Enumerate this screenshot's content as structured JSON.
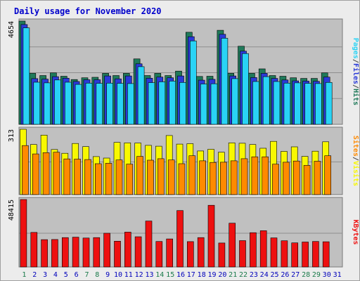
{
  "title": "Daily usage for November 2020",
  "colors": {
    "hits": "#1f7a5a",
    "files": "#2a3ad8",
    "pages": "#29d3f5",
    "visits": "#f8f800",
    "sites": "#ff8a00",
    "kbytes": "#ee1010",
    "panel_bg": "#c0c0c0",
    "weekend_label": "#1a7a4a",
    "weekday_label": "#0000bb"
  },
  "chart_data": [
    {
      "type": "bar",
      "panel": "hits-files-pages",
      "y_max_label": "4654",
      "ylim": [
        0,
        4654
      ],
      "legend": [
        {
          "text": "Pages",
          "color": "#29d3f5"
        },
        {
          "text": "/",
          "color": "#444444"
        },
        {
          "text": "Files",
          "color": "#2a3ad8"
        },
        {
          "text": "/",
          "color": "#444444"
        },
        {
          "text": "Hits",
          "color": "#1f7a5a"
        }
      ],
      "series": [
        {
          "name": "Hits",
          "values": [
            4654,
            2300,
            2200,
            2320,
            2170,
            2020,
            2100,
            2120,
            2300,
            2200,
            2300,
            2950,
            2200,
            2300,
            2200,
            2400,
            4150,
            2160,
            2170,
            4240,
            2300,
            3520,
            2300,
            2500,
            2200,
            2170,
            2100,
            2070,
            2070,
            2320
          ]
        },
        {
          "name": "Files",
          "values": [
            4500,
            2060,
            2040,
            2150,
            2080,
            1930,
            2010,
            2010,
            2180,
            2050,
            2180,
            2730,
            2080,
            2130,
            2100,
            2180,
            3950,
            1990,
            2030,
            4060,
            2180,
            3300,
            2110,
            2300,
            2070,
            2000,
            1960,
            1950,
            1940,
            2130
          ]
        },
        {
          "name": "Pages",
          "values": [
            4350,
            1900,
            1870,
            2000,
            1900,
            1800,
            1860,
            1850,
            1860,
            1850,
            1840,
            2600,
            1880,
            1920,
            1950,
            1890,
            3760,
            1820,
            1830,
            3880,
            2060,
            3190,
            1930,
            2150,
            1930,
            1860,
            1870,
            1850,
            1840,
            1890
          ]
        }
      ]
    },
    {
      "type": "bar",
      "panel": "visits-sites",
      "y_max_label": "313",
      "ylim": [
        0,
        313
      ],
      "legend": [
        {
          "text": "Sites",
          "color": "#ff8a00"
        },
        {
          "text": "/",
          "color": "#444444"
        },
        {
          "text": "Visits",
          "color": "#f8f800"
        }
      ],
      "series": [
        {
          "name": "Visits",
          "values": [
            313,
            240,
            285,
            216,
            198,
            245,
            230,
            182,
            175,
            250,
            248,
            247,
            236,
            232,
            283,
            242,
            244,
            209,
            217,
            203,
            248,
            246,
            240,
            222,
            255,
            207,
            229,
            183,
            208,
            253
          ]
        },
        {
          "name": "Sites",
          "values": [
            235,
            195,
            201,
            203,
            171,
            170,
            168,
            148,
            150,
            166,
            146,
            183,
            165,
            172,
            166,
            148,
            186,
            162,
            154,
            155,
            162,
            172,
            181,
            181,
            146,
            155,
            161,
            140,
            160,
            186
          ]
        }
      ]
    },
    {
      "type": "bar",
      "panel": "kbytes",
      "y_max_label": "48415",
      "ylim": [
        0,
        48415
      ],
      "legend": [
        {
          "text": "KBytes",
          "color": "#ee1010"
        }
      ],
      "series": [
        {
          "name": "KBytes",
          "values": [
            48415,
            24800,
            19600,
            19700,
            21100,
            21400,
            20800,
            21100,
            24200,
            18500,
            25000,
            21700,
            33000,
            18300,
            20100,
            40500,
            18200,
            21100,
            44300,
            17200,
            31400,
            18900,
            24600,
            26000,
            20900,
            18800,
            17300,
            17900,
            18300,
            18100
          ]
        }
      ]
    }
  ],
  "x_labels": [
    {
      "text": "1",
      "weekend": true
    },
    {
      "text": "2",
      "weekend": false
    },
    {
      "text": "3",
      "weekend": false
    },
    {
      "text": "4",
      "weekend": false
    },
    {
      "text": "5",
      "weekend": false
    },
    {
      "text": "6",
      "weekend": false
    },
    {
      "text": "7",
      "weekend": true
    },
    {
      "text": "8",
      "weekend": true
    },
    {
      "text": "9",
      "weekend": false
    },
    {
      "text": "10",
      "weekend": false
    },
    {
      "text": "11",
      "weekend": false
    },
    {
      "text": "12",
      "weekend": false
    },
    {
      "text": "13",
      "weekend": false
    },
    {
      "text": "14",
      "weekend": true
    },
    {
      "text": "15",
      "weekend": true
    },
    {
      "text": "16",
      "weekend": false
    },
    {
      "text": "17",
      "weekend": false
    },
    {
      "text": "18",
      "weekend": false
    },
    {
      "text": "19",
      "weekend": false
    },
    {
      "text": "20",
      "weekend": false
    },
    {
      "text": "21",
      "weekend": true
    },
    {
      "text": "22",
      "weekend": true
    },
    {
      "text": "23",
      "weekend": false
    },
    {
      "text": "24",
      "weekend": false
    },
    {
      "text": "25",
      "weekend": false
    },
    {
      "text": "26",
      "weekend": false
    },
    {
      "text": "27",
      "weekend": false
    },
    {
      "text": "28",
      "weekend": true
    },
    {
      "text": "29",
      "weekend": true
    },
    {
      "text": "30",
      "weekend": false
    },
    {
      "text": "31",
      "weekend": false
    }
  ]
}
